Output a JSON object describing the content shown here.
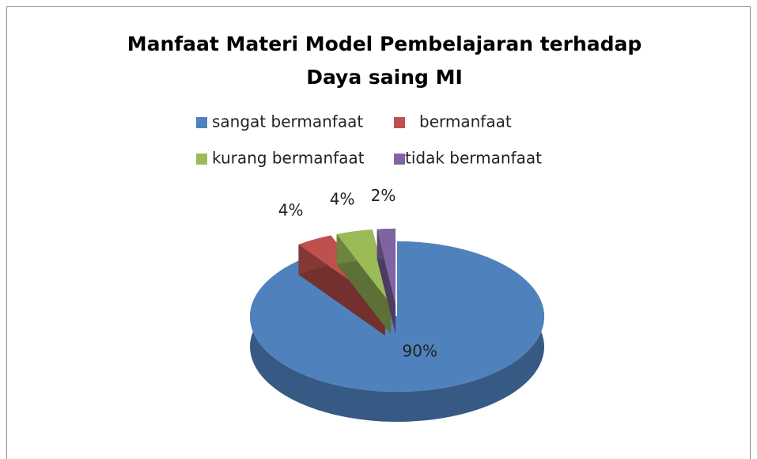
{
  "chart_data": {
    "type": "pie3d",
    "title": "Manfaat Materi Model Pembelajaran terhadap Daya saing MI",
    "categories": [
      "sangat bermanfaat",
      "bermanfaat",
      "kurang  bermanfaat",
      "tidak  bermanfaat"
    ],
    "values": [
      90,
      4,
      4,
      2
    ],
    "value_labels": [
      "90%",
      "4%",
      "4%",
      "2%"
    ],
    "colors": [
      "#4f81bd",
      "#c0504d",
      "#9bbb59",
      "#8064a2"
    ],
    "exploded": [
      false,
      true,
      true,
      true
    ],
    "legend": "top"
  }
}
